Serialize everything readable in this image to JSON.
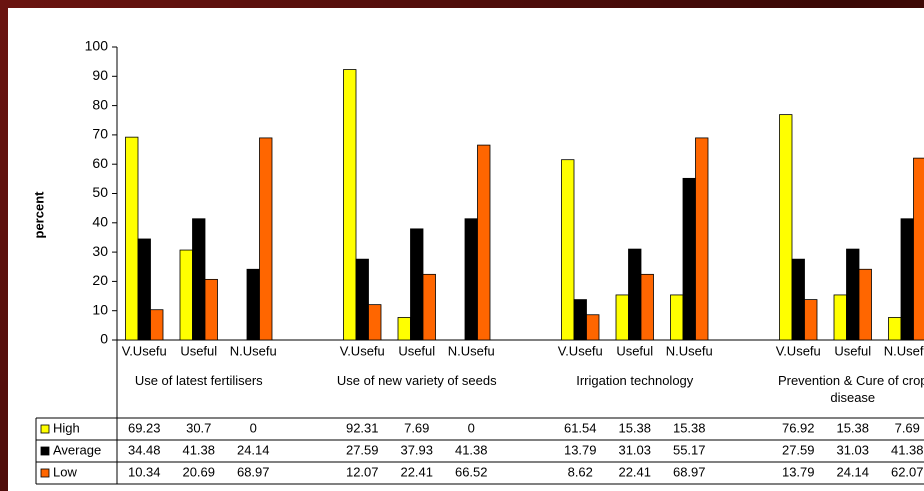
{
  "chart_data": {
    "type": "bar",
    "y_label": "percent",
    "categories": [
      "V.Usefu",
      "Useful",
      "N.Usefu",
      null,
      "V.Usefu",
      "Useful",
      "N.Usefu",
      null,
      "V.Usefu",
      "Useful",
      "N.Usefu",
      null,
      "V.Usefu",
      "Useful",
      "N.Usefu",
      null
    ],
    "groups": [
      "Use of latest fertilisers",
      "Use of new variety  of seeds",
      "Irrigation technology",
      "Prevention & Cure of crop disease"
    ],
    "series": [
      {
        "name": "High",
        "color": "#ffff00",
        "values": [
          69.23,
          30.7,
          0,
          null,
          92.31,
          7.69,
          0,
          null,
          61.54,
          15.38,
          15.38,
          null,
          76.92,
          15.38,
          7.69,
          null
        ]
      },
      {
        "name": "Average",
        "color": "#000000",
        "values": [
          34.48,
          41.38,
          24.14,
          null,
          27.59,
          37.93,
          41.38,
          null,
          13.79,
          31.03,
          55.17,
          null,
          27.59,
          31.03,
          41.38,
          null
        ]
      },
      {
        "name": "Low",
        "color": "#ff6600",
        "values": [
          10.34,
          20.69,
          68.97,
          null,
          12.07,
          22.41,
          66.52,
          null,
          8.62,
          22.41,
          68.97,
          null,
          13.79,
          24.14,
          62.07,
          null
        ]
      }
    ],
    "ylim": [
      0,
      100
    ],
    "yticks": [
      0,
      10,
      20,
      30,
      40,
      50,
      60,
      70,
      80,
      90,
      100
    ],
    "grid": false
  }
}
